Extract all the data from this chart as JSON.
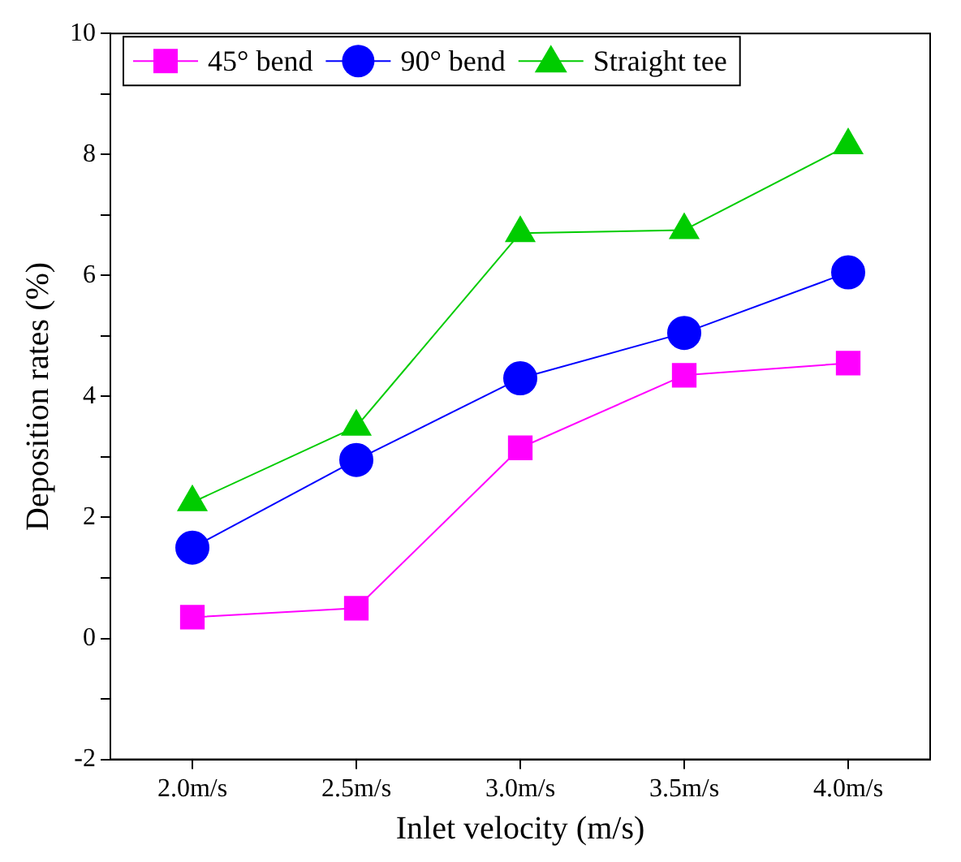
{
  "chart_data": {
    "type": "line",
    "xlabel": "Inlet velocity (m/s)",
    "ylabel": "Deposition rates (%)",
    "categories": [
      "2.0m/s",
      "2.5m/s",
      "3.0m/s",
      "3.5m/s",
      "4.0m/s"
    ],
    "series": [
      {
        "name": "45° bend",
        "color": "#ff00ff",
        "marker": "square",
        "values": [
          0.35,
          0.5,
          3.15,
          4.35,
          4.55
        ]
      },
      {
        "name": "90° bend",
        "color": "#0000ff",
        "marker": "circle",
        "values": [
          1.5,
          2.95,
          4.3,
          5.05,
          6.05
        ]
      },
      {
        "name": "Straight tee",
        "color": "#00cc00",
        "marker": "triangle",
        "values": [
          2.25,
          3.5,
          6.7,
          6.75,
          8.15
        ]
      }
    ],
    "ylim": [
      -2,
      10
    ],
    "yticks": [
      -2,
      {
        "value": -1,
        "label": null
      },
      0,
      {
        "value": 1,
        "label": null
      },
      2,
      {
        "value": 3,
        "label": null
      },
      4,
      {
        "value": 5,
        "label": null
      },
      6,
      {
        "value": 7,
        "label": null
      },
      8,
      {
        "value": 9,
        "label": null
      },
      10
    ],
    "grid": false,
    "legend": "top left",
    "line_style": "solid"
  }
}
